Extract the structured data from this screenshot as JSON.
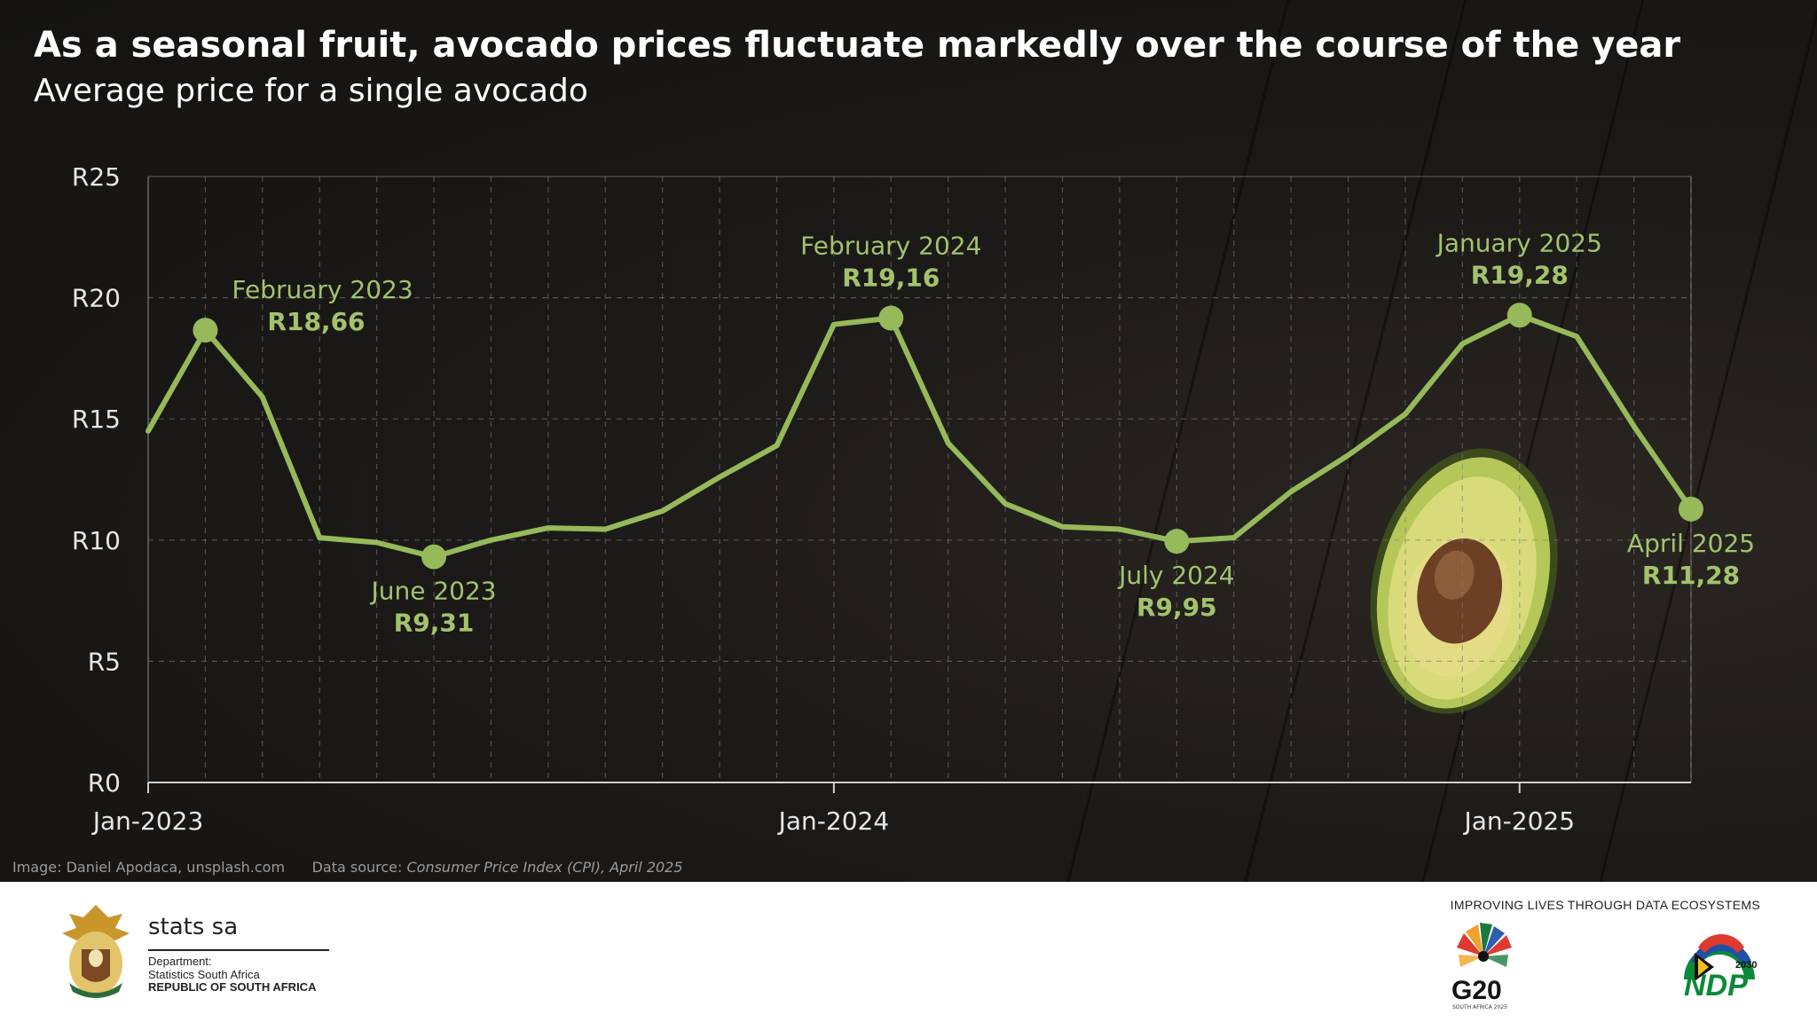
{
  "title": "As a seasonal fruit, avocado prices fluctuate markedly over the course of the year",
  "subtitle": "Average price for a single avocado",
  "credits": {
    "image": "Image: Daniel Apodaca, unsplash.com",
    "source_label": "Data source:",
    "source_value": "Consumer Price Index (CPI), April 2025"
  },
  "colors": {
    "line": "#96b95a",
    "label": "#a3c26d",
    "background": "#1b1917",
    "grid": "#7a7a7a"
  },
  "chart_data": {
    "type": "line",
    "x": [
      "2023-01",
      "2023-02",
      "2023-03",
      "2023-04",
      "2023-05",
      "2023-06",
      "2023-07",
      "2023-08",
      "2023-09",
      "2023-10",
      "2023-11",
      "2023-12",
      "2024-01",
      "2024-02",
      "2024-03",
      "2024-04",
      "2024-05",
      "2024-06",
      "2024-07",
      "2024-08",
      "2024-09",
      "2024-10",
      "2024-11",
      "2024-12",
      "2025-01",
      "2025-02",
      "2025-03",
      "2025-04"
    ],
    "values": [
      14.5,
      18.66,
      15.9,
      10.1,
      9.9,
      9.31,
      10.0,
      10.5,
      10.45,
      11.2,
      12.6,
      13.9,
      18.9,
      19.16,
      14.0,
      11.5,
      10.55,
      10.45,
      9.95,
      10.1,
      12.0,
      13.5,
      15.2,
      18.1,
      19.28,
      18.4,
      14.7,
      11.28
    ],
    "ylim": [
      0,
      25
    ],
    "yticks": [
      "R0",
      "R5",
      "R10",
      "R15",
      "R20",
      "R25"
    ],
    "xticks": [
      "Jan-2023",
      "Jan-2024",
      "Jan-2025"
    ],
    "grid": true,
    "annotations": [
      {
        "x": "2023-02",
        "label": "February 2023",
        "value": "R18,66",
        "position": "right"
      },
      {
        "x": "2023-06",
        "label": "June 2023",
        "value": "R9,31",
        "position": "below"
      },
      {
        "x": "2024-02",
        "label": "February 2024",
        "value": "R19,16",
        "position": "above"
      },
      {
        "x": "2024-07",
        "label": "July 2024",
        "value": "R9,95",
        "position": "below"
      },
      {
        "x": "2025-01",
        "label": "January 2025",
        "value": "R19,28",
        "position": "above"
      },
      {
        "x": "2025-04",
        "label": "April 2025",
        "value": "R11,28",
        "position": "below"
      }
    ]
  },
  "footer": {
    "org_name": "stats sa",
    "dept_line1": "Department:",
    "dept_line2": "Statistics South Africa",
    "dept_line3": "REPUBLIC OF SOUTH AFRICA",
    "tagline": "IMPROVING LIVES THROUGH DATA ECOSYSTEMS",
    "g20_label": "G20",
    "g20_sub": "SOUTH AFRICA 2025",
    "ndp_label": "NDP",
    "ndp_year": "2030",
    "crest_icon": "coat-of-arms-icon",
    "g20_icon": "g20-flower-logo-icon",
    "ndp_icon": "ndp-2030-logo-icon"
  }
}
